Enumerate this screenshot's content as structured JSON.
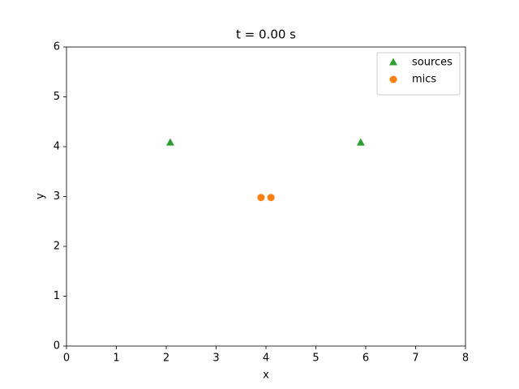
{
  "chart_data": {
    "type": "scatter",
    "title": "t = 0.00 s",
    "xlabel": "x",
    "ylabel": "y",
    "xlim": [
      0,
      8
    ],
    "ylim": [
      0,
      6
    ],
    "xticks": [
      0,
      1,
      2,
      3,
      4,
      5,
      6,
      7,
      8
    ],
    "yticks": [
      0,
      1,
      2,
      3,
      4,
      5,
      6
    ],
    "grid": false,
    "legend": "upper-right",
    "series": [
      {
        "name": "sources",
        "color": "#2ca02c",
        "marker": "triangle",
        "x": [
          2.08,
          5.9
        ],
        "values": [
          4.08,
          4.08
        ]
      },
      {
        "name": "mics",
        "color": "#ff7f0e",
        "marker": "circle",
        "x": [
          3.9,
          4.1
        ],
        "values": [
          2.98,
          2.98
        ]
      }
    ]
  }
}
